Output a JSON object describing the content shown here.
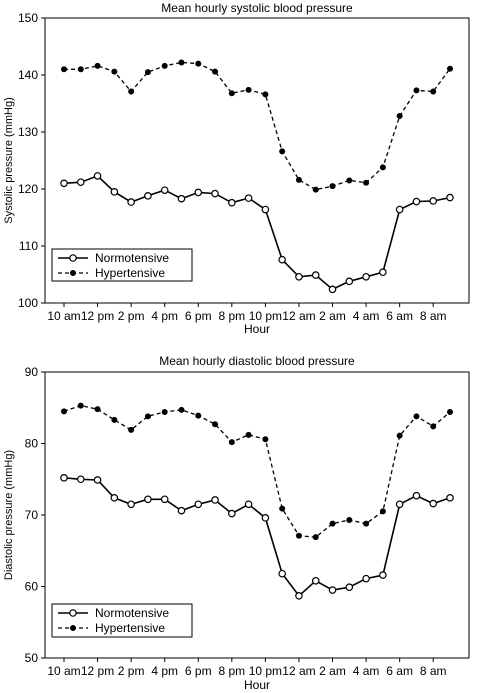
{
  "chart_data": [
    {
      "type": "line",
      "title": "Mean hourly systolic blood pressure",
      "xlabel": "Hour",
      "ylabel": "Systolic pressure (mmHg)",
      "ylim": [
        100,
        150
      ],
      "yticks": [
        100,
        110,
        120,
        130,
        140,
        150
      ],
      "xtick_labels": [
        "10 am",
        "12 pm",
        "2 pm",
        "4 pm",
        "6 pm",
        "8 pm",
        "10 pm",
        "12 am",
        "2 am",
        "4 am",
        "6 am",
        "8 am"
      ],
      "categories": [
        "10 am",
        "11 am",
        "12 pm",
        "1 pm",
        "2 pm",
        "3 pm",
        "4 pm",
        "5 pm",
        "6 pm",
        "7 pm",
        "8 pm",
        "9 pm",
        "10 pm",
        "11 pm",
        "12 am",
        "1 am",
        "2 am",
        "3 am",
        "4 am",
        "5 am",
        "6 am",
        "7 am",
        "8 am",
        "9 am"
      ],
      "grid": false,
      "legend_position": "bottom-left",
      "series": [
        {
          "name": "Normotensive",
          "style": "solid",
          "marker": "open-circle",
          "values": [
            121.0,
            121.2,
            122.3,
            119.5,
            117.7,
            118.8,
            119.8,
            118.3,
            119.4,
            119.2,
            117.6,
            118.4,
            116.4,
            107.6,
            104.6,
            104.9,
            102.4,
            103.8,
            104.6,
            105.4,
            116.4,
            117.8,
            117.9,
            118.5
          ]
        },
        {
          "name": "Hypertensive",
          "style": "dashed",
          "marker": "filled-circle",
          "values": [
            141.0,
            141.0,
            141.6,
            140.6,
            137.1,
            140.5,
            141.6,
            142.2,
            142.0,
            140.6,
            136.8,
            137.4,
            136.6,
            126.6,
            121.6,
            119.9,
            120.5,
            121.5,
            121.1,
            123.8,
            132.8,
            137.3,
            137.1,
            141.1
          ]
        }
      ]
    },
    {
      "type": "line",
      "title": "Mean hourly diastolic blood pressure",
      "xlabel": "Hour",
      "ylabel": "Diastolic pressure (mmHg)",
      "ylim": [
        50,
        90
      ],
      "yticks": [
        50,
        60,
        70,
        80,
        90
      ],
      "xtick_labels": [
        "10 am",
        "12 pm",
        "2 pm",
        "4 pm",
        "6 pm",
        "8 pm",
        "10 pm",
        "12 am",
        "2 am",
        "4 am",
        "6 am",
        "8 am"
      ],
      "categories": [
        "10 am",
        "11 am",
        "12 pm",
        "1 pm",
        "2 pm",
        "3 pm",
        "4 pm",
        "5 pm",
        "6 pm",
        "7 pm",
        "8 pm",
        "9 pm",
        "10 pm",
        "11 pm",
        "12 am",
        "1 am",
        "2 am",
        "3 am",
        "4 am",
        "5 am",
        "6 am",
        "7 am",
        "8 am",
        "9 am"
      ],
      "grid": false,
      "legend_position": "bottom-left",
      "series": [
        {
          "name": "Normotensive",
          "style": "solid",
          "marker": "open-circle",
          "values": [
            75.2,
            75.0,
            74.9,
            72.4,
            71.5,
            72.2,
            72.2,
            70.6,
            71.5,
            72.1,
            70.2,
            71.5,
            69.6,
            61.8,
            58.7,
            60.8,
            59.5,
            59.9,
            61.1,
            61.6,
            71.5,
            72.7,
            71.6,
            72.4
          ]
        },
        {
          "name": "Hypertensive",
          "style": "dashed",
          "marker": "filled-circle",
          "values": [
            84.5,
            85.3,
            84.8,
            83.3,
            81.9,
            83.8,
            84.4,
            84.7,
            83.9,
            82.7,
            80.2,
            81.2,
            80.6,
            70.9,
            67.1,
            66.9,
            68.8,
            69.3,
            68.8,
            70.5,
            81.1,
            83.8,
            82.4,
            84.4
          ]
        }
      ]
    }
  ]
}
